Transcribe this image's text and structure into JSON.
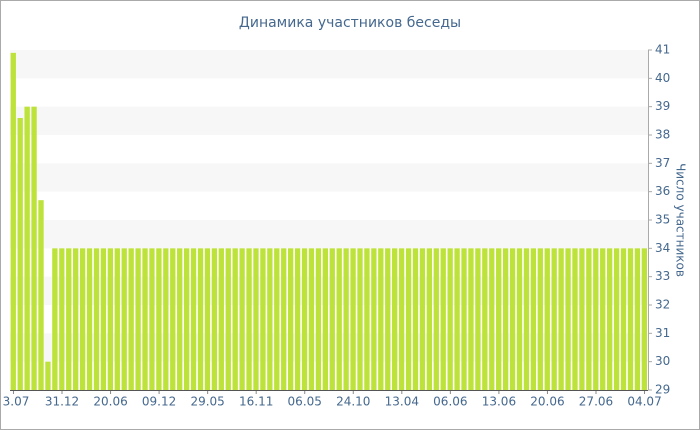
{
  "chart_data": {
    "type": "bar",
    "title": "Динамика участников беседы",
    "y_label": "Число участников",
    "categories": [
      "3.07",
      null,
      null,
      null,
      null,
      null,
      null,
      "31.12",
      null,
      null,
      null,
      null,
      null,
      null,
      "20.06",
      null,
      null,
      null,
      null,
      null,
      null,
      "09.12",
      null,
      null,
      null,
      null,
      null,
      null,
      "29.05",
      null,
      null,
      null,
      null,
      null,
      null,
      "16.11",
      null,
      null,
      null,
      null,
      null,
      null,
      "06.05",
      null,
      null,
      null,
      null,
      null,
      null,
      "24.10",
      null,
      null,
      null,
      null,
      null,
      null,
      "13.04",
      null,
      null,
      null,
      null,
      null,
      null,
      "06.06",
      null,
      null,
      null,
      null,
      null,
      null,
      "13.06",
      null,
      null,
      null,
      null,
      null,
      null,
      "20.06",
      null,
      null,
      null,
      null,
      null,
      null,
      "27.06",
      null,
      null,
      null,
      null,
      null,
      null,
      "04.07"
    ],
    "values": [
      40.9,
      38.6,
      39,
      39,
      35.7,
      30,
      34,
      34,
      34,
      34,
      34,
      34,
      34,
      34,
      34,
      34,
      34,
      34,
      34,
      34,
      34,
      34,
      34,
      34,
      34,
      34,
      34,
      34,
      34,
      34,
      34,
      34,
      34,
      34,
      34,
      34,
      34,
      34,
      34,
      34,
      34,
      34,
      34,
      34,
      34,
      34,
      34,
      34,
      34,
      34,
      34,
      34,
      34,
      34,
      34,
      34,
      34,
      34,
      34,
      34,
      34,
      34,
      34,
      34,
      34,
      34,
      34,
      34,
      34,
      34,
      34,
      34,
      34,
      34,
      34,
      34,
      34,
      34,
      34,
      34,
      34,
      34,
      34,
      34,
      34,
      34,
      34,
      34,
      34,
      34,
      34,
      34
    ],
    "color": "#bde33a",
    "ylim": [
      29,
      41
    ],
    "yticks": [
      29,
      30,
      31,
      32,
      33,
      34,
      35,
      36,
      37,
      38,
      39,
      40,
      41
    ],
    "y_axis_side": "right",
    "grid": true
  }
}
